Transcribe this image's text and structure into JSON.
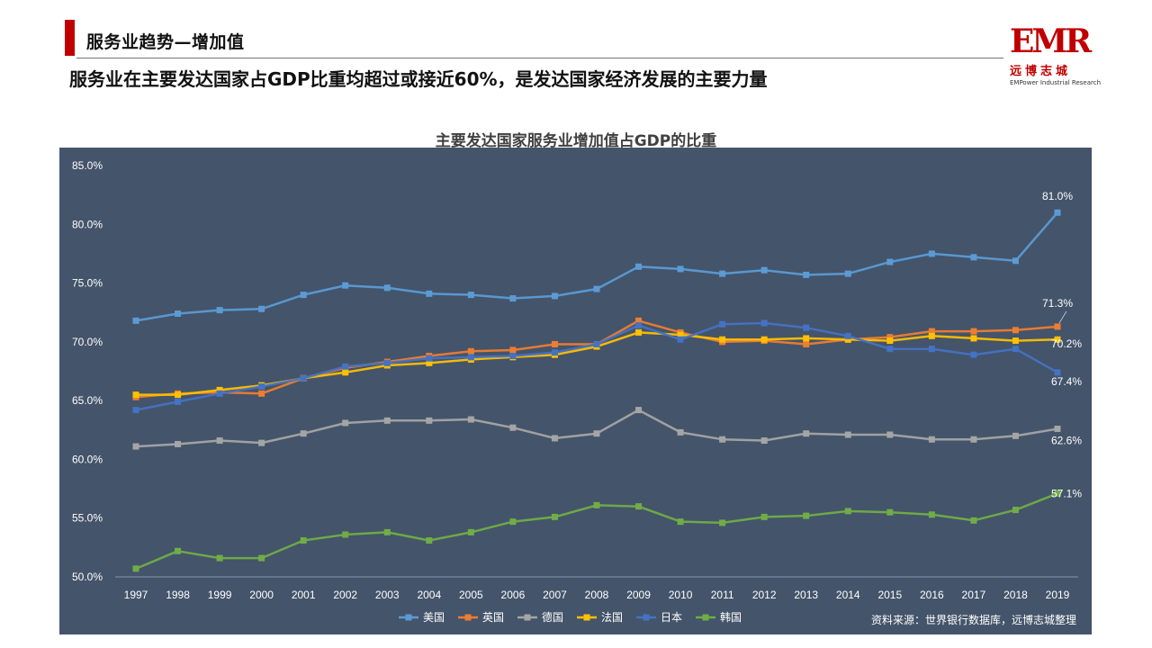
{
  "header": {
    "section_title": "服务业趋势—增加值",
    "headline": "服务业在主要发达国家占GDP比重均超过或接近60%，是发达国家经济发展的主要力量"
  },
  "logo": {
    "mark": "EMR",
    "cn": "远博志城",
    "en": "EMPower Industrial Research"
  },
  "colors": {
    "accent": "#c00000",
    "panel": "#44546a",
    "usa": "#5b9bd5",
    "uk": "#ed7d31",
    "germany": "#a5a5a5",
    "france": "#ffc000",
    "japan": "#4472c4",
    "korea": "#70ad47"
  },
  "chart_data": {
    "type": "line",
    "title": "主要发达国家服务业增加值占GDP的比重",
    "xlabel": "",
    "ylabel": "",
    "ylim": [
      50,
      85
    ],
    "yticks": [
      "50.0%",
      "55.0%",
      "60.0%",
      "65.0%",
      "70.0%",
      "75.0%",
      "80.0%",
      "85.0%"
    ],
    "grid": false,
    "legend": "bottom",
    "source": "资料来源：世界银行数据库，远博志城整理",
    "x": [
      "1997",
      "1998",
      "1999",
      "2000",
      "2001",
      "2002",
      "2003",
      "2004",
      "2005",
      "2006",
      "2007",
      "2008",
      "2009",
      "2010",
      "2011",
      "2012",
      "2013",
      "2014",
      "2015",
      "2016",
      "2017",
      "2018",
      "2019"
    ],
    "series": [
      {
        "name": "美国",
        "key": "usa",
        "values": [
          71.8,
          72.4,
          72.7,
          72.8,
          74.0,
          74.8,
          74.6,
          74.1,
          74.0,
          73.7,
          73.9,
          74.5,
          76.4,
          76.2,
          75.8,
          76.1,
          75.7,
          75.8,
          76.8,
          77.5,
          77.2,
          76.9,
          81.0
        ],
        "end_label": "81.0%"
      },
      {
        "name": "英国",
        "key": "uk",
        "values": [
          65.3,
          65.6,
          65.7,
          65.6,
          66.9,
          67.8,
          68.3,
          68.8,
          69.2,
          69.3,
          69.8,
          69.8,
          71.8,
          70.8,
          70.0,
          70.1,
          69.8,
          70.2,
          70.4,
          70.9,
          70.9,
          71.0,
          71.3
        ],
        "end_label": "71.3%"
      },
      {
        "name": "德国",
        "key": "germany",
        "values": [
          61.1,
          61.3,
          61.6,
          61.4,
          62.2,
          63.1,
          63.3,
          63.3,
          63.4,
          62.7,
          61.8,
          62.2,
          64.2,
          62.3,
          61.7,
          61.6,
          62.2,
          62.1,
          62.1,
          61.7,
          61.7,
          62.0,
          62.6
        ],
        "end_label": "62.6%"
      },
      {
        "name": "法国",
        "key": "france",
        "values": [
          65.5,
          65.5,
          65.9,
          66.3,
          66.9,
          67.4,
          68.0,
          68.2,
          68.5,
          68.7,
          68.9,
          69.6,
          70.8,
          70.6,
          70.2,
          70.2,
          70.3,
          70.2,
          70.1,
          70.5,
          70.3,
          70.1,
          70.2
        ],
        "end_label": "70.2%"
      },
      {
        "name": "日本",
        "key": "japan",
        "values": [
          64.2,
          64.9,
          65.6,
          66.2,
          66.9,
          67.9,
          68.2,
          68.6,
          68.7,
          68.8,
          69.1,
          69.8,
          71.4,
          70.2,
          71.5,
          71.6,
          71.2,
          70.5,
          69.4,
          69.4,
          68.9,
          69.4,
          67.4
        ],
        "end_label": "67.4%"
      },
      {
        "name": "韩国",
        "key": "korea",
        "values": [
          50.7,
          52.2,
          51.6,
          51.6,
          53.1,
          53.6,
          53.8,
          53.1,
          53.8,
          54.7,
          55.1,
          56.1,
          56.0,
          54.7,
          54.6,
          55.1,
          55.2,
          55.6,
          55.5,
          55.3,
          54.8,
          55.7,
          57.1
        ],
        "end_label": "57.1%"
      }
    ]
  }
}
